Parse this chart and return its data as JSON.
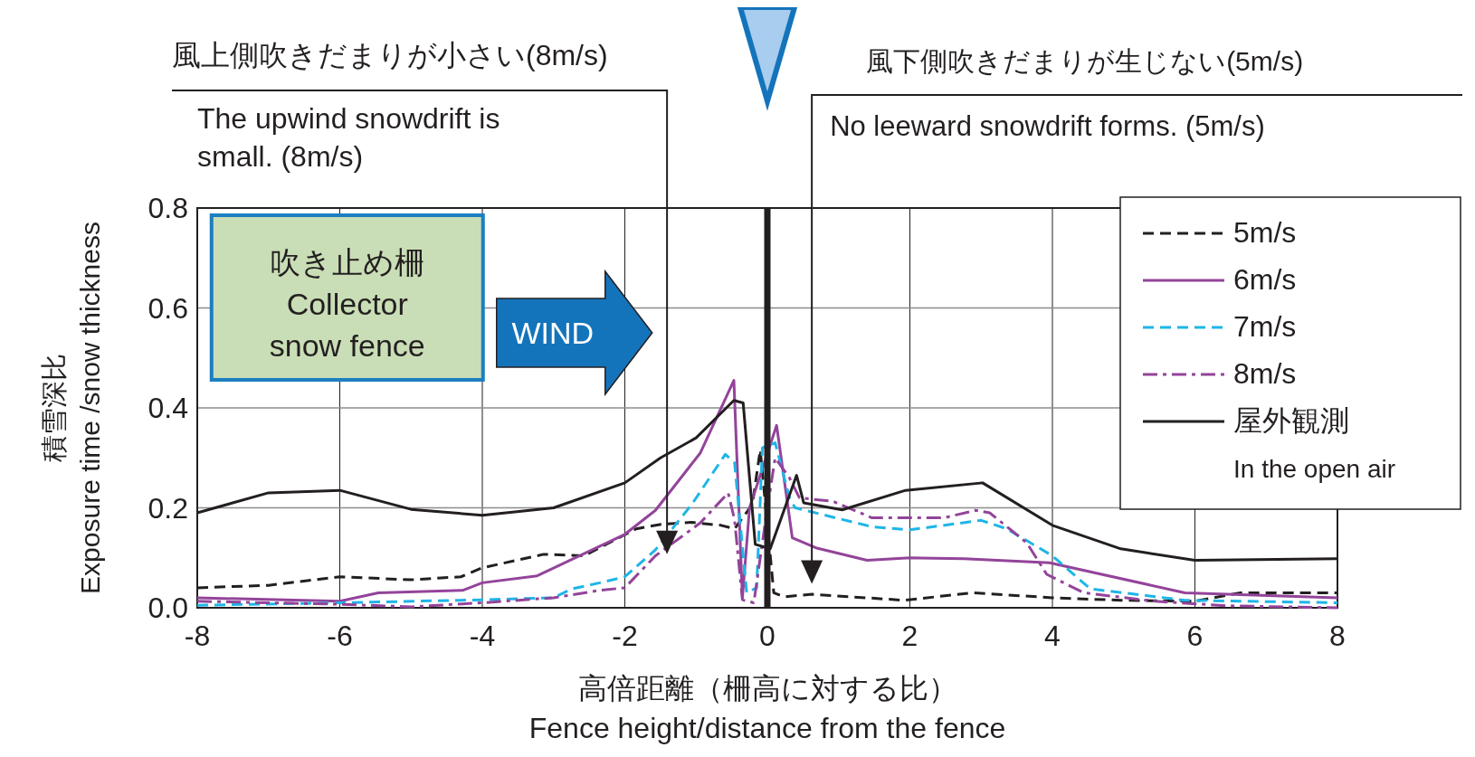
{
  "chart_data": {
    "type": "line",
    "xlabel": "高倍距離（柵高に対する比）\nFence height/distance from the fence",
    "ylabel": "積雪深比\nExposure time /snow thickness",
    "xlim": [
      -8,
      8
    ],
    "xticks": [
      -8,
      -6,
      -4,
      -2,
      0,
      2,
      4,
      6,
      8
    ],
    "ylim": [
      0,
      0.8
    ],
    "yticks": [
      {
        "value": 0,
        "label": "0.0"
      },
      0.2,
      0.4,
      0.6,
      0.8
    ],
    "grid": true,
    "legend": "top right",
    "ref_lines": [
      {
        "axis": "x",
        "value": 0,
        "color": "#231f20"
      }
    ],
    "annotations": [
      "風上側吹きだまりが小さい(8m/s)",
      "The upwind snowdrift is small. (8m/s)",
      "風下側吹きだまりが生じない(5m/s)",
      "No leeward snowdrift forms. (5m/s)",
      "吹き止め柵\nCollector\nsnow fence",
      "WIND"
    ],
    "series": [
      {
        "name": "5m/s",
        "color": "#231f20",
        "line_style": "dashed",
        "x": [
          -8,
          -7,
          -6,
          -5,
          -4.3,
          -4,
          -3.14,
          -2.57,
          -1.84,
          -1.49,
          -1.06,
          -0.65,
          -0.46,
          -0.21,
          -0.1,
          0.09,
          0.23,
          0.63,
          1.92,
          2.88,
          4,
          4.96,
          6,
          6.64,
          8
        ],
        "values": [
          0.04,
          0.045,
          0.062,
          0.056,
          0.062,
          0.08,
          0.107,
          0.104,
          0.158,
          0.167,
          0.171,
          0.165,
          0.158,
          0.207,
          0.316,
          0.03,
          0.022,
          0.027,
          0.015,
          0.03,
          0.02,
          0.015,
          0.013,
          0.03,
          0.03
        ]
      },
      {
        "name": "6m/s",
        "color": "#93449a",
        "line_style": "solid",
        "x": [
          -8,
          -6,
          -5.46,
          -4.27,
          -4,
          -3.23,
          -2,
          -1.57,
          -0.94,
          -0.47,
          -0.35,
          -0.25,
          0.13,
          0.35,
          0.68,
          1.4,
          2,
          2.76,
          3.96,
          5.86,
          8
        ],
        "values": [
          0.02,
          0.013,
          0.03,
          0.035,
          0.05,
          0.064,
          0.147,
          0.195,
          0.31,
          0.455,
          0.02,
          0.2,
          0.365,
          0.14,
          0.12,
          0.095,
          0.1,
          0.098,
          0.09,
          0.03,
          0.02
        ]
      },
      {
        "name": "7m/s",
        "color": "#1fb5e6",
        "line_style": "dashed",
        "x": [
          -8,
          -6,
          -4,
          -3,
          -2.74,
          -2.35,
          -2,
          -1.57,
          -1.06,
          -0.59,
          -0.46,
          -0.29,
          -0.15,
          -0.07,
          0.11,
          0.31,
          0.39,
          1.47,
          2,
          3,
          3.36,
          4,
          4.53,
          5.86,
          8
        ],
        "values": [
          0.005,
          0.01,
          0.016,
          0.02,
          0.038,
          0.05,
          0.062,
          0.116,
          0.207,
          0.307,
          0.29,
          0.03,
          0.04,
          0.32,
          0.33,
          0.22,
          0.2,
          0.162,
          0.156,
          0.175,
          0.158,
          0.104,
          0.038,
          0.015,
          0.01
        ]
      },
      {
        "name": "8m/s",
        "color": "#93449a",
        "line_style": "dashdot",
        "x": [
          -8,
          -6,
          -5,
          -4,
          -3,
          -2.35,
          -2,
          -1.57,
          -0.94,
          -0.7,
          -0.55,
          -0.46,
          -0.35,
          -0.19,
          0,
          0.11,
          0.31,
          0.45,
          0.92,
          1.47,
          2.48,
          2.92,
          3.12,
          3.64,
          3.92,
          4.44,
          5.44,
          6.45,
          8
        ],
        "values": [
          0.013,
          0.007,
          0.002,
          0.01,
          0.02,
          0.035,
          0.04,
          0.104,
          0.17,
          0.207,
          0.23,
          0.176,
          0.016,
          0.01,
          0.2,
          0.3,
          0.26,
          0.22,
          0.213,
          0.18,
          0.18,
          0.195,
          0.19,
          0.13,
          0.067,
          0.03,
          0.013,
          0.004,
          0
        ]
      },
      {
        "name": "屋外観測\nIn the open air",
        "color": "#231f20",
        "line_style": "solid",
        "x": [
          -8,
          -7,
          -6,
          -5,
          -4,
          -3,
          -2,
          -1.5,
          -1,
          -0.47,
          -0.34,
          -0.17,
          0.04,
          0.41,
          0.51,
          1.05,
          1.94,
          3.02,
          4,
          4.96,
          6,
          8
        ],
        "values": [
          0.19,
          0.23,
          0.235,
          0.197,
          0.185,
          0.2,
          0.25,
          0.3,
          0.34,
          0.415,
          0.41,
          0.127,
          0.118,
          0.265,
          0.21,
          0.196,
          0.235,
          0.25,
          0.165,
          0.118,
          0.095,
          0.098
        ]
      }
    ]
  }
}
